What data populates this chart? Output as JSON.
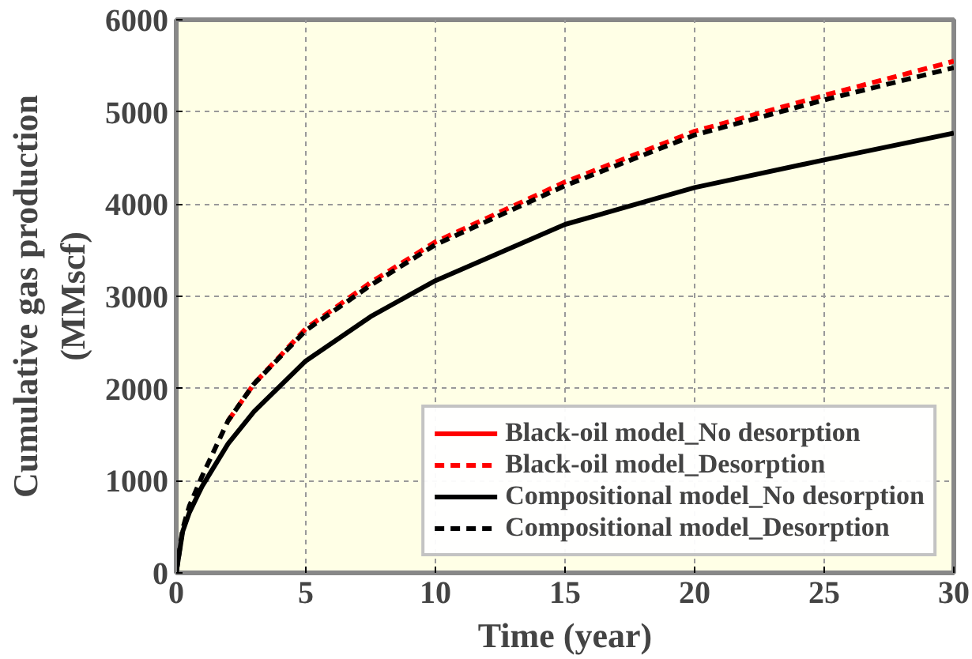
{
  "chart_data": {
    "type": "line",
    "xlabel": "Time (year)",
    "ylabel": "Cumulative gas production (MMscf)",
    "xlim": [
      0,
      30
    ],
    "ylim": [
      0,
      6000
    ],
    "xticks": [
      0,
      5,
      10,
      15,
      20,
      25,
      30
    ],
    "yticks": [
      0,
      1000,
      2000,
      3000,
      4000,
      5000,
      6000
    ],
    "grid": true,
    "legend": "bottom right",
    "x": [
      0,
      0.25,
      0.5,
      1,
      2,
      3,
      5,
      7.5,
      10,
      15,
      20,
      25,
      30
    ],
    "series": [
      {
        "name": "Black-oil model_No desorption",
        "color": "#ff0000",
        "line_style": "solid",
        "values": [
          null,
          null,
          null,
          null,
          null,
          null,
          null,
          null,
          null,
          null,
          null,
          null,
          null
        ]
      },
      {
        "name": "Black-oil model_Desorption",
        "color": "#ff0000",
        "line_style": "dashed",
        "values": [
          null,
          null,
          null,
          null,
          1650,
          2050,
          2650,
          3150,
          3590,
          4240,
          4790,
          5180,
          5550
        ]
      },
      {
        "name": "Compositional model_No desorption",
        "color": "#000000",
        "line_style": "solid",
        "values": [
          0,
          450,
          650,
          940,
          1400,
          1750,
          2300,
          2780,
          3170,
          3780,
          4180,
          4480,
          4770
        ]
      },
      {
        "name": "Compositional model_Desorption",
        "color": "#000000",
        "line_style": "dashed",
        "values": [
          0,
          480,
          720,
          1050,
          1650,
          2050,
          2630,
          3120,
          3560,
          4200,
          4750,
          5130,
          5480
        ]
      }
    ]
  }
}
